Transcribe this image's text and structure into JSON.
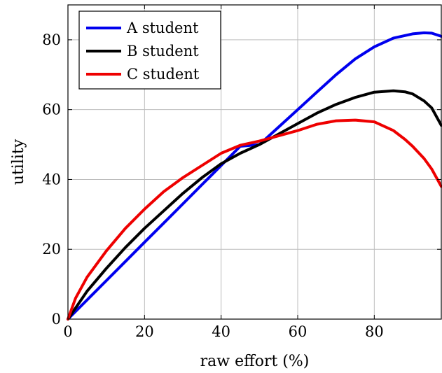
{
  "chart_data": {
    "type": "line",
    "xlabel": "raw effort (%)",
    "ylabel": "utility",
    "xlim": [
      0,
      97.5
    ],
    "ylim": [
      0,
      90
    ],
    "xticks": [
      0,
      20,
      40,
      60,
      80
    ],
    "yticks": [
      0,
      20,
      40,
      60,
      80
    ],
    "grid": true,
    "legend_position": "top-left",
    "series": [
      {
        "name": "A student",
        "color": "#0000ee",
        "x": [
          0,
          5,
          10,
          15,
          20,
          25,
          30,
          35,
          40,
          45,
          50,
          55,
          60,
          65,
          70,
          75,
          80,
          85,
          90,
          93,
          95,
          97.5
        ],
        "y": [
          0,
          5.5,
          11,
          16.5,
          22,
          27.5,
          33,
          38.5,
          44,
          49.5,
          50,
          55,
          60,
          65,
          70,
          74.5,
          78,
          80.5,
          81.7,
          82,
          81.9,
          81
        ]
      },
      {
        "name": "B student",
        "color": "#000000",
        "x": [
          0,
          5,
          10,
          15,
          20,
          25,
          30,
          35,
          40,
          45,
          50,
          55,
          60,
          65,
          70,
          75,
          80,
          85,
          88,
          90,
          93,
          95,
          97.5
        ],
        "y": [
          0,
          8,
          14.5,
          20.5,
          26,
          31,
          36,
          40.5,
          44.5,
          47.5,
          50,
          53,
          56,
          59,
          61.5,
          63.5,
          65,
          65.4,
          65.1,
          64.5,
          62.5,
          60.5,
          55.5
        ]
      },
      {
        "name": "C student",
        "color": "#ee0000",
        "x": [
          0,
          2,
          5,
          10,
          15,
          20,
          25,
          30,
          35,
          40,
          45,
          50,
          55,
          60,
          65,
          70,
          75,
          80,
          85,
          88,
          90,
          93,
          95,
          97.5
        ],
        "y": [
          0,
          6,
          12,
          19.5,
          26,
          31.5,
          36.5,
          40.5,
          44,
          47.5,
          49.8,
          51,
          52.5,
          54,
          55.8,
          56.8,
          57,
          56.5,
          54,
          51.5,
          49.5,
          46,
          43,
          38
        ]
      }
    ]
  }
}
